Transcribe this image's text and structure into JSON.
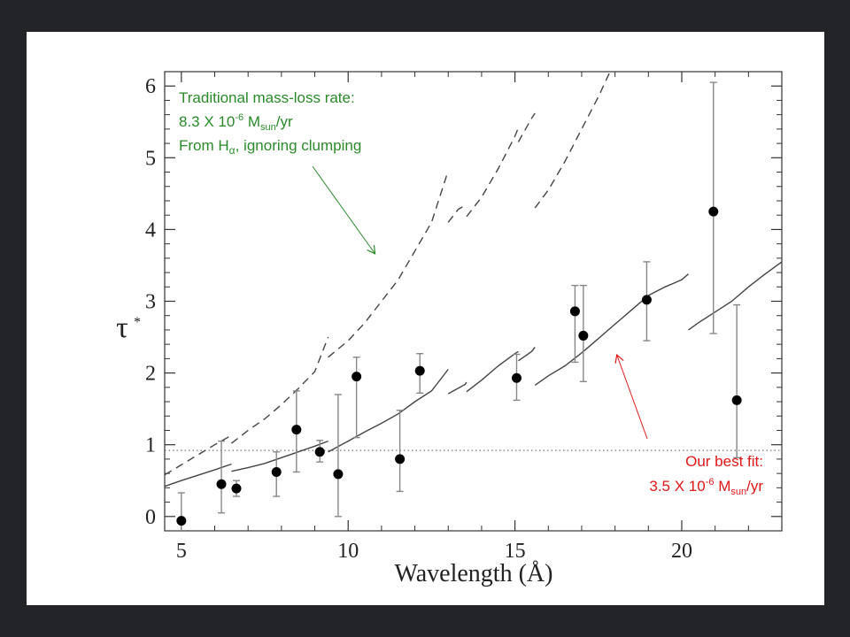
{
  "chart_data": {
    "type": "scatter",
    "xlabel": "Wavelength (Å)",
    "ylabel": "τ",
    "ylabel_sub": "*",
    "xlim": [
      4.5,
      23
    ],
    "ylim": [
      -0.2,
      6.2
    ],
    "xticks": [
      5,
      10,
      15,
      20
    ],
    "yticks": [
      0,
      1,
      2,
      3,
      4,
      5,
      6
    ],
    "grid": false,
    "reference_line": {
      "y": 0.92,
      "style": "dotted"
    },
    "series": [
      {
        "kind": "points",
        "style": "filled-circle-with-errorbars",
        "points": [
          {
            "x": 5.0,
            "y": -0.06,
            "lo": -0.2,
            "hi": 0.33
          },
          {
            "x": 6.2,
            "y": 0.45,
            "lo": 0.05,
            "hi": 1.05
          },
          {
            "x": 6.65,
            "y": 0.39,
            "lo": 0.28,
            "hi": 0.5
          },
          {
            "x": 7.85,
            "y": 0.62,
            "lo": 0.28,
            "hi": 0.9
          },
          {
            "x": 8.45,
            "y": 1.21,
            "lo": 0.62,
            "hi": 1.75
          },
          {
            "x": 9.15,
            "y": 0.9,
            "lo": 0.76,
            "hi": 1.06
          },
          {
            "x": 9.7,
            "y": 0.59,
            "lo": 0.0,
            "hi": 1.7
          },
          {
            "x": 10.25,
            "y": 1.95,
            "lo": 1.1,
            "hi": 2.22
          },
          {
            "x": 11.55,
            "y": 0.8,
            "lo": 0.35,
            "hi": 1.48
          },
          {
            "x": 12.15,
            "y": 2.03,
            "lo": 1.72,
            "hi": 2.27
          },
          {
            "x": 15.05,
            "y": 1.93,
            "lo": 1.62,
            "hi": 2.26
          },
          {
            "x": 16.8,
            "y": 2.86,
            "lo": 2.15,
            "hi": 3.22
          },
          {
            "x": 17.05,
            "y": 2.52,
            "lo": 1.88,
            "hi": 3.22
          },
          {
            "x": 18.95,
            "y": 3.02,
            "lo": 2.45,
            "hi": 3.55
          },
          {
            "x": 20.95,
            "y": 4.25,
            "lo": 2.55,
            "hi": 6.05
          },
          {
            "x": 21.65,
            "y": 1.62,
            "lo": 0.82,
            "hi": 2.95
          }
        ]
      },
      {
        "kind": "line",
        "style": "dashed",
        "segments": [
          [
            [
              4.5,
              0.58
            ],
            [
              5.0,
              0.72
            ],
            [
              5.5,
              0.86
            ],
            [
              6.0,
              1.0
            ],
            [
              6.5,
              1.13
            ]
          ],
          [
            [
              6.5,
              1.02
            ],
            [
              7.0,
              1.2
            ],
            [
              7.5,
              1.36
            ],
            [
              8.0,
              1.56
            ],
            [
              8.5,
              1.78
            ],
            [
              9.0,
              2.02
            ],
            [
              9.4,
              2.5
            ]
          ],
          [
            [
              9.4,
              2.22
            ],
            [
              10.0,
              2.45
            ],
            [
              10.5,
              2.7
            ],
            [
              11.0,
              3.0
            ],
            [
              11.5,
              3.3
            ],
            [
              12.0,
              3.7
            ],
            [
              12.5,
              4.1
            ],
            [
              13.0,
              4.82
            ]
          ],
          [
            [
              13.0,
              4.1
            ],
            [
              13.3,
              4.28
            ],
            [
              13.55,
              4.35
            ]
          ],
          [
            [
              13.55,
              4.18
            ],
            [
              14.0,
              4.45
            ],
            [
              14.5,
              4.85
            ],
            [
              15.0,
              5.3
            ],
            [
              15.1,
              5.42
            ]
          ],
          [
            [
              15.1,
              5.22
            ],
            [
              15.5,
              5.55
            ],
            [
              15.6,
              5.62
            ]
          ],
          [
            [
              15.6,
              4.3
            ],
            [
              16.0,
              4.55
            ],
            [
              16.5,
              4.95
            ],
            [
              17.0,
              5.4
            ],
            [
              17.5,
              5.85
            ],
            [
              17.85,
              6.2
            ]
          ]
        ]
      },
      {
        "kind": "line",
        "style": "solid",
        "segments": [
          [
            [
              4.5,
              0.42
            ],
            [
              5.0,
              0.5
            ],
            [
              6.0,
              0.65
            ],
            [
              6.5,
              0.73
            ]
          ],
          [
            [
              6.5,
              0.63
            ],
            [
              7.0,
              0.68
            ],
            [
              7.5,
              0.74
            ],
            [
              8.0,
              0.82
            ],
            [
              8.5,
              0.9
            ],
            [
              9.0,
              0.98
            ],
            [
              9.4,
              1.05
            ]
          ],
          [
            [
              9.4,
              0.9
            ],
            [
              10.0,
              1.05
            ],
            [
              10.5,
              1.18
            ],
            [
              11.0,
              1.3
            ],
            [
              11.5,
              1.43
            ],
            [
              12.0,
              1.6
            ],
            [
              12.5,
              1.75
            ],
            [
              13.0,
              2.05
            ]
          ],
          [
            [
              13.0,
              1.71
            ],
            [
              13.5,
              1.84
            ],
            [
              13.55,
              1.87
            ]
          ],
          [
            [
              13.55,
              1.74
            ],
            [
              14.0,
              1.9
            ],
            [
              14.5,
              2.1
            ],
            [
              15.0,
              2.27
            ],
            [
              15.1,
              2.3
            ]
          ],
          [
            [
              15.1,
              2.17
            ],
            [
              15.5,
              2.3
            ],
            [
              15.6,
              2.36
            ]
          ],
          [
            [
              15.6,
              1.83
            ],
            [
              16.0,
              1.96
            ],
            [
              16.5,
              2.1
            ],
            [
              17.0,
              2.28
            ],
            [
              17.5,
              2.48
            ],
            [
              18.0,
              2.68
            ],
            [
              18.5,
              2.88
            ],
            [
              19.0,
              3.08
            ],
            [
              19.5,
              3.2
            ],
            [
              20.0,
              3.3
            ],
            [
              20.2,
              3.38
            ]
          ],
          [
            [
              20.2,
              2.6
            ],
            [
              20.5,
              2.7
            ],
            [
              21.0,
              2.85
            ],
            [
              21.5,
              3.0
            ],
            [
              22.0,
              3.2
            ],
            [
              22.5,
              3.38
            ],
            [
              23.0,
              3.55
            ]
          ]
        ]
      }
    ]
  },
  "annotations": {
    "traditional": {
      "line1": "Traditional mass-loss rate:",
      "line2_pre": "8.3 X 10",
      "line2_exp": "-6",
      "line2_mid": " M",
      "line2_sub": "sun",
      "line2_post": "/yr",
      "line3_pre": "From H",
      "line3_sub": "α",
      "line3_post": ", ignoring clumping",
      "color": "#2a8a2a"
    },
    "best_fit": {
      "line1": "Our best fit:",
      "line2_pre": "3.5 X 10",
      "line2_exp": "-6",
      "line2_mid": " M",
      "line2_sub": "sun",
      "line2_post": "/yr",
      "color": "#e01818"
    }
  }
}
